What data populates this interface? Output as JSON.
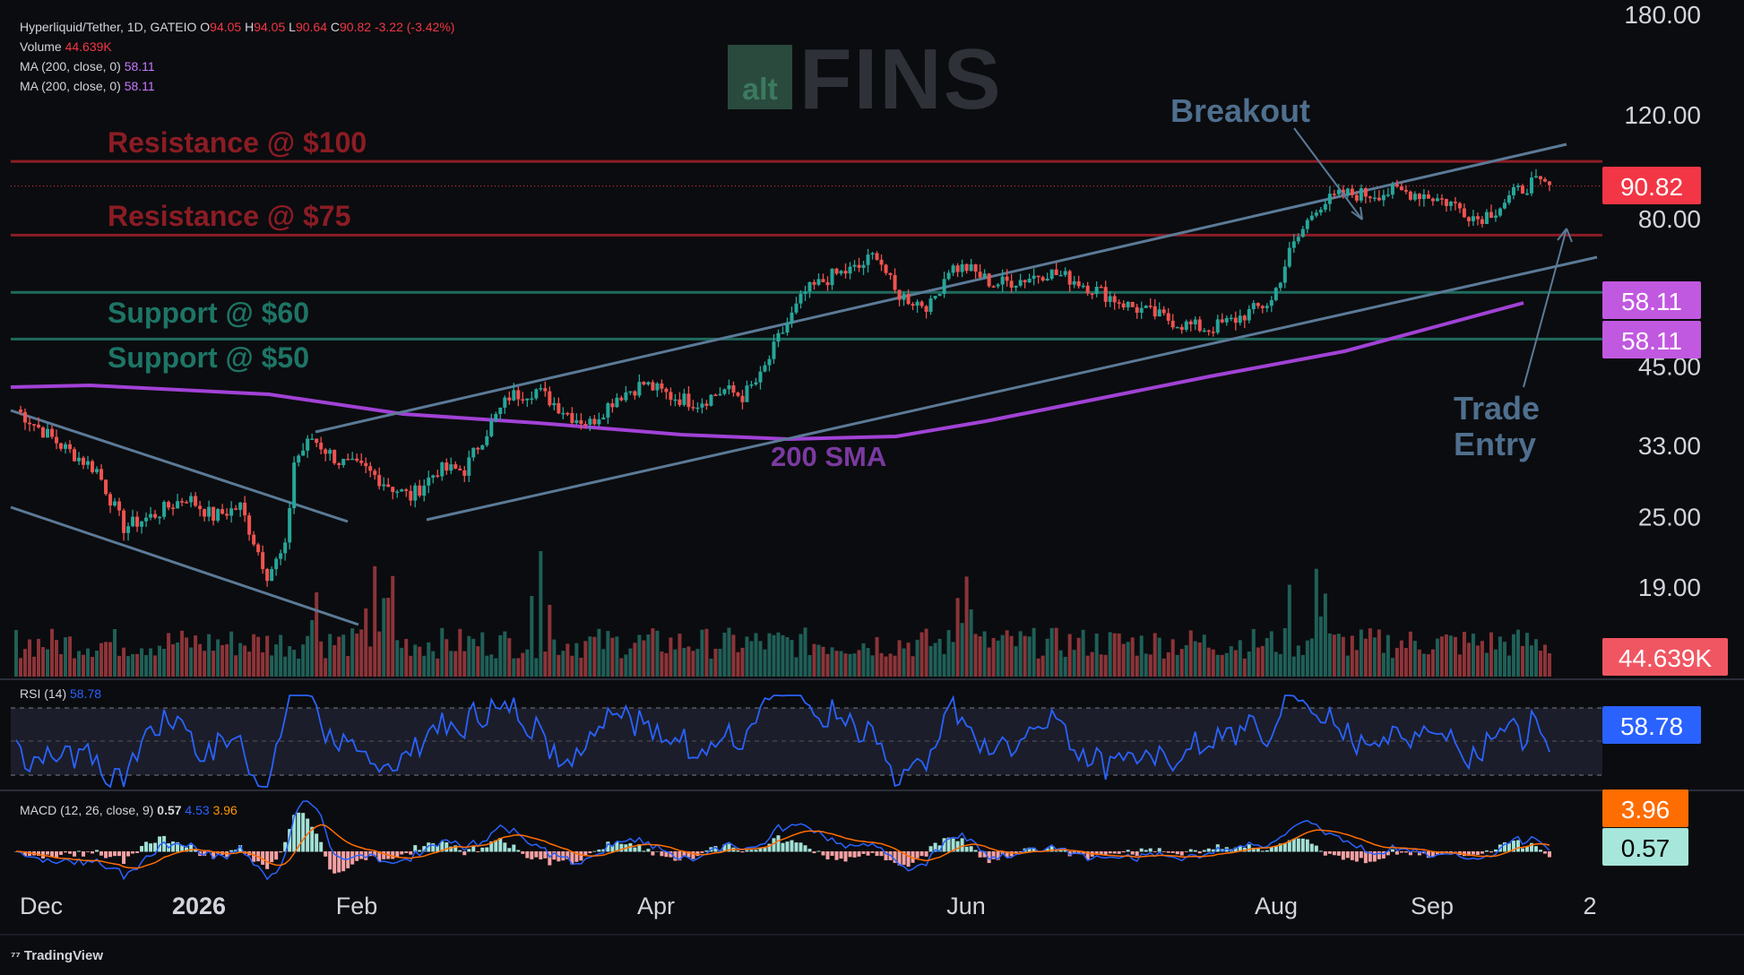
{
  "header": {
    "symbol": "Hyperliquid/Tether, 1D, GATEIO",
    "ohlc": {
      "o_label": "O",
      "o": "94.05",
      "h_label": "H",
      "h": "94.05",
      "l_label": "L",
      "l": "90.64",
      "c_label": "C",
      "c": "90.82",
      "change": "-3.22 (-3.42%)"
    },
    "volume_label": "Volume",
    "volume_value": "44.639K",
    "ma1_label": "MA (200, close, 0)",
    "ma1_value": "58.11",
    "ma2_label": "MA (200, close, 0)",
    "ma2_value": "58.11"
  },
  "watermark": {
    "alt": "alt",
    "fins": "FINS"
  },
  "branding": "TradingView",
  "colors": {
    "up": "#26a69a",
    "down": "#ef5350",
    "sma": "#a142d6",
    "resistance": "#8c1d25",
    "support": "#1f6b5e",
    "channel": "#5b7a97",
    "rsi": "#2962ff",
    "macd": "#2962ff",
    "signal": "#ff6d00"
  },
  "chart_data": {
    "type": "candlestick",
    "title": "Hyperliquid/Tether, 1D, GATEIO",
    "y_scale": "log",
    "y_ticks": [
      "180.00",
      "120.00",
      "80.00",
      "45.00",
      "33.00",
      "25.00",
      "19.00"
    ],
    "x_ticks": [
      "Dec",
      "2026",
      "Feb",
      "Apr",
      "Jun",
      "Aug",
      "Sep",
      "2"
    ],
    "price_labels": {
      "last": "90.82",
      "ma1": "58.11",
      "ma2": "58.11",
      "volume": "44.639K",
      "rsi": "58.78",
      "macd_signal": "3.96",
      "macd": "0.57"
    },
    "annotations": {
      "resistance_100": "Resistance @ $100",
      "resistance_75": "Resistance @ $75",
      "support_60": "Support @ $60",
      "support_50": "Support @ $50",
      "breakout": "Breakout",
      "sma": "200 SMA",
      "trade_entry_1": "Trade",
      "trade_entry_2": "Entry"
    },
    "levels": {
      "resistance": [
        100,
        75
      ],
      "support": [
        60,
        50
      ]
    },
    "price_path": [
      [
        0,
        38
      ],
      [
        10,
        33
      ],
      [
        18,
        30
      ],
      [
        24,
        24
      ],
      [
        30,
        25
      ],
      [
        38,
        27
      ],
      [
        44,
        25
      ],
      [
        50,
        26
      ],
      [
        56,
        20
      ],
      [
        60,
        22
      ],
      [
        62,
        31
      ],
      [
        66,
        34
      ],
      [
        72,
        31
      ],
      [
        78,
        30
      ],
      [
        84,
        28
      ],
      [
        88,
        27
      ],
      [
        94,
        30
      ],
      [
        100,
        30
      ],
      [
        104,
        34
      ],
      [
        110,
        40
      ],
      [
        116,
        41
      ],
      [
        124,
        37
      ],
      [
        128,
        36
      ],
      [
        134,
        40
      ],
      [
        140,
        42
      ],
      [
        146,
        40
      ],
      [
        152,
        39
      ],
      [
        158,
        41
      ],
      [
        162,
        40
      ],
      [
        166,
        43
      ],
      [
        170,
        50
      ],
      [
        176,
        60
      ],
      [
        182,
        64
      ],
      [
        188,
        66
      ],
      [
        192,
        70
      ],
      [
        196,
        60
      ],
      [
        200,
        58
      ],
      [
        204,
        57
      ],
      [
        208,
        66
      ],
      [
        212,
        66
      ],
      [
        218,
        62
      ],
      [
        224,
        63
      ],
      [
        230,
        65
      ],
      [
        236,
        63
      ],
      [
        242,
        60
      ],
      [
        248,
        57
      ],
      [
        254,
        55
      ],
      [
        260,
        53
      ],
      [
        266,
        52
      ],
      [
        272,
        54
      ],
      [
        276,
        56
      ],
      [
        280,
        58
      ],
      [
        284,
        70
      ],
      [
        290,
        84
      ],
      [
        296,
        88
      ],
      [
        302,
        88
      ],
      [
        308,
        89
      ],
      [
        314,
        88
      ],
      [
        320,
        85
      ],
      [
        326,
        80
      ],
      [
        330,
        83
      ],
      [
        334,
        88
      ],
      [
        338,
        92
      ],
      [
        342,
        90.8
      ]
    ],
    "rsi": {
      "label": "RSI (14)",
      "value": "58.78",
      "upper": 70,
      "lower": 30
    },
    "macd": {
      "label": "MACD (12, 26, close, 9)",
      "macd": "0.57",
      "signal": "4.53",
      "hist": "3.96"
    }
  }
}
